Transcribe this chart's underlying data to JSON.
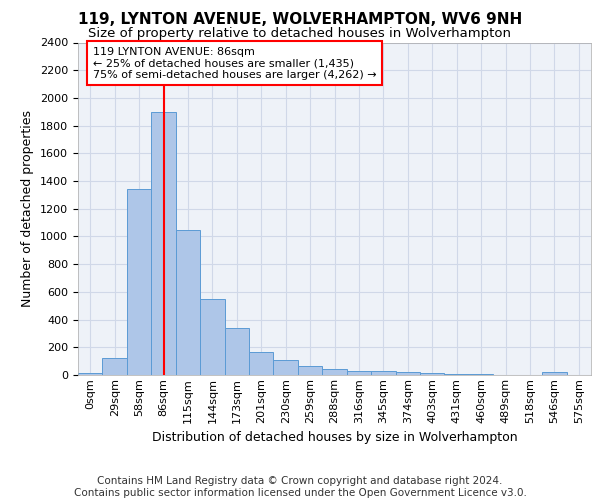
{
  "title1": "119, LYNTON AVENUE, WOLVERHAMPTON, WV6 9NH",
  "title2": "Size of property relative to detached houses in Wolverhampton",
  "xlabel": "Distribution of detached houses by size in Wolverhampton",
  "ylabel": "Number of detached properties",
  "footer1": "Contains HM Land Registry data © Crown copyright and database right 2024.",
  "footer2": "Contains public sector information licensed under the Open Government Licence v3.0.",
  "bar_labels": [
    "0sqm",
    "29sqm",
    "58sqm",
    "86sqm",
    "115sqm",
    "144sqm",
    "173sqm",
    "201sqm",
    "230sqm",
    "259sqm",
    "288sqm",
    "316sqm",
    "345sqm",
    "374sqm",
    "403sqm",
    "431sqm",
    "460sqm",
    "489sqm",
    "518sqm",
    "546sqm",
    "575sqm"
  ],
  "bar_heights": [
    15,
    125,
    1340,
    1900,
    1045,
    545,
    340,
    165,
    110,
    65,
    40,
    30,
    28,
    22,
    15,
    5,
    5,
    0,
    0,
    22,
    0
  ],
  "bar_color": "#aec6e8",
  "bar_edge_color": "#5b9bd5",
  "vline_x": 3,
  "vline_color": "red",
  "annotation_line1": "119 LYNTON AVENUE: 86sqm",
  "annotation_line2": "← 25% of detached houses are smaller (1,435)",
  "annotation_line3": "75% of semi-detached houses are larger (4,262) →",
  "annotation_box_color": "red",
  "ylim": [
    0,
    2400
  ],
  "yticks": [
    0,
    200,
    400,
    600,
    800,
    1000,
    1200,
    1400,
    1600,
    1800,
    2000,
    2200,
    2400
  ],
  "grid_color": "#d0d8e8",
  "bg_color": "#eef2f8",
  "title1_fontsize": 11,
  "title2_fontsize": 9.5,
  "xlabel_fontsize": 9,
  "ylabel_fontsize": 9,
  "footer_fontsize": 7.5,
  "tick_fontsize": 8,
  "annot_fontsize": 8
}
